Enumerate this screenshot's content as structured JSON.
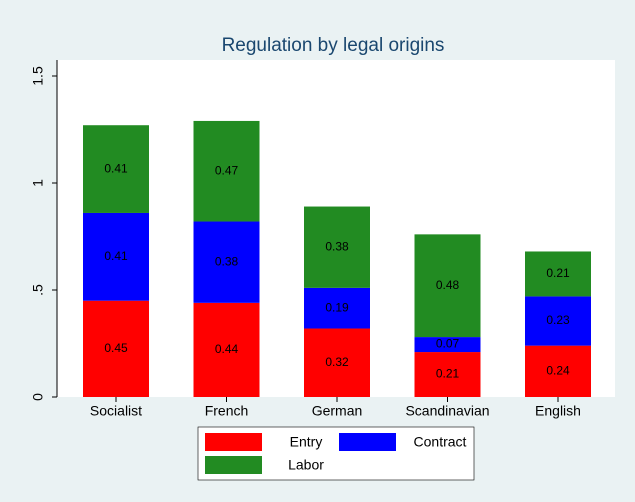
{
  "chart_data": {
    "type": "stacked_bar",
    "title": "Regulation by legal origins",
    "categories": [
      "Socialist",
      "French",
      "German",
      "Scandinavian",
      "English"
    ],
    "series": [
      {
        "name": "Entry",
        "color": "#ff0000",
        "values": [
          0.45,
          0.44,
          0.32,
          0.21,
          0.24
        ]
      },
      {
        "name": "Contract",
        "color": "#0000ff",
        "values": [
          0.41,
          0.38,
          0.19,
          0.07,
          0.23
        ]
      },
      {
        "name": "Labor",
        "color": "#228b22",
        "values": [
          0.41,
          0.47,
          0.38,
          0.48,
          0.21
        ]
      }
    ],
    "ylim": [
      0,
      1.5
    ],
    "yticks": [
      0,
      {
        "value": 0.5,
        "label": ".5"
      },
      1,
      1.5
    ],
    "grid": false,
    "legend": "bottom"
  }
}
